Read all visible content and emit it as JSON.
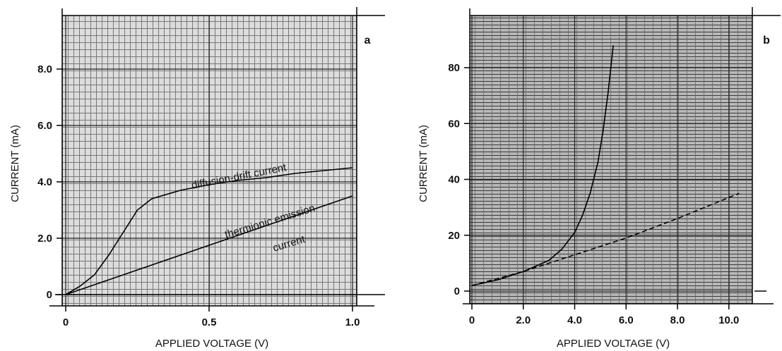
{
  "chart_data": [
    {
      "type": "line",
      "panel_label": "a",
      "xlabel": "APPLIED VOLTAGE (V)",
      "ylabel": "CURRENT (mA)",
      "xlim": [
        0,
        1.0
      ],
      "ylim": [
        -0.2,
        9.6
      ],
      "x_ticks": [
        0,
        0.5,
        1.0
      ],
      "x_tick_labels": [
        "0",
        "0.5",
        "1.0"
      ],
      "y_ticks": [
        0,
        2,
        4,
        6,
        8
      ],
      "y_tick_labels": [
        "0",
        "2.0",
        "4.0",
        "6.0",
        "8.0"
      ],
      "grid": true,
      "series": [
        {
          "name": "diffusion-drift current",
          "x": [
            0,
            0.05,
            0.1,
            0.15,
            0.2,
            0.25,
            0.3,
            0.4,
            0.5,
            0.6,
            0.7,
            0.8,
            0.9,
            1.0
          ],
          "y": [
            0,
            0.3,
            0.7,
            1.4,
            2.2,
            3.0,
            3.4,
            3.7,
            3.9,
            4.05,
            4.15,
            4.3,
            4.4,
            4.5
          ]
        },
        {
          "name": "thermionic emission current",
          "x": [
            0,
            0.1,
            0.2,
            0.3,
            0.4,
            0.5,
            0.6,
            0.7,
            0.8,
            0.9,
            1.0
          ],
          "y": [
            0,
            0.35,
            0.7,
            1.05,
            1.4,
            1.75,
            2.1,
            2.45,
            2.8,
            3.15,
            3.5
          ]
        }
      ],
      "annotations": [
        "diffusion-drift current",
        "thermionic emission",
        "current"
      ]
    },
    {
      "type": "line",
      "panel_label": "b",
      "xlabel": "APPLIED VOLTAGE (V)",
      "ylabel": "CURRENT (mA)",
      "xlim": [
        0,
        10.5
      ],
      "ylim": [
        -2,
        97
      ],
      "x_ticks": [
        0,
        2,
        4,
        6,
        8,
        10
      ],
      "x_tick_labels": [
        "0",
        "2.0",
        "4.0",
        "6.0",
        "8.0",
        "10.0"
      ],
      "y_ticks": [
        0,
        20,
        40,
        60,
        80
      ],
      "y_tick_labels": [
        "0",
        "20",
        "40",
        "60",
        "80"
      ],
      "grid": true,
      "series": [
        {
          "x": [
            0,
            1.0,
            2.0,
            3.0,
            3.5,
            4.0,
            4.3,
            4.6,
            4.9,
            5.1,
            5.3,
            5.5
          ],
          "y": [
            2,
            4,
            7,
            11,
            15,
            21,
            27,
            35,
            46,
            57,
            71,
            88
          ]
        },
        {
          "x": [
            0,
            2,
            4,
            6,
            8,
            10.4
          ],
          "y": [
            2,
            7,
            13,
            19,
            26,
            35
          ]
        }
      ]
    }
  ]
}
